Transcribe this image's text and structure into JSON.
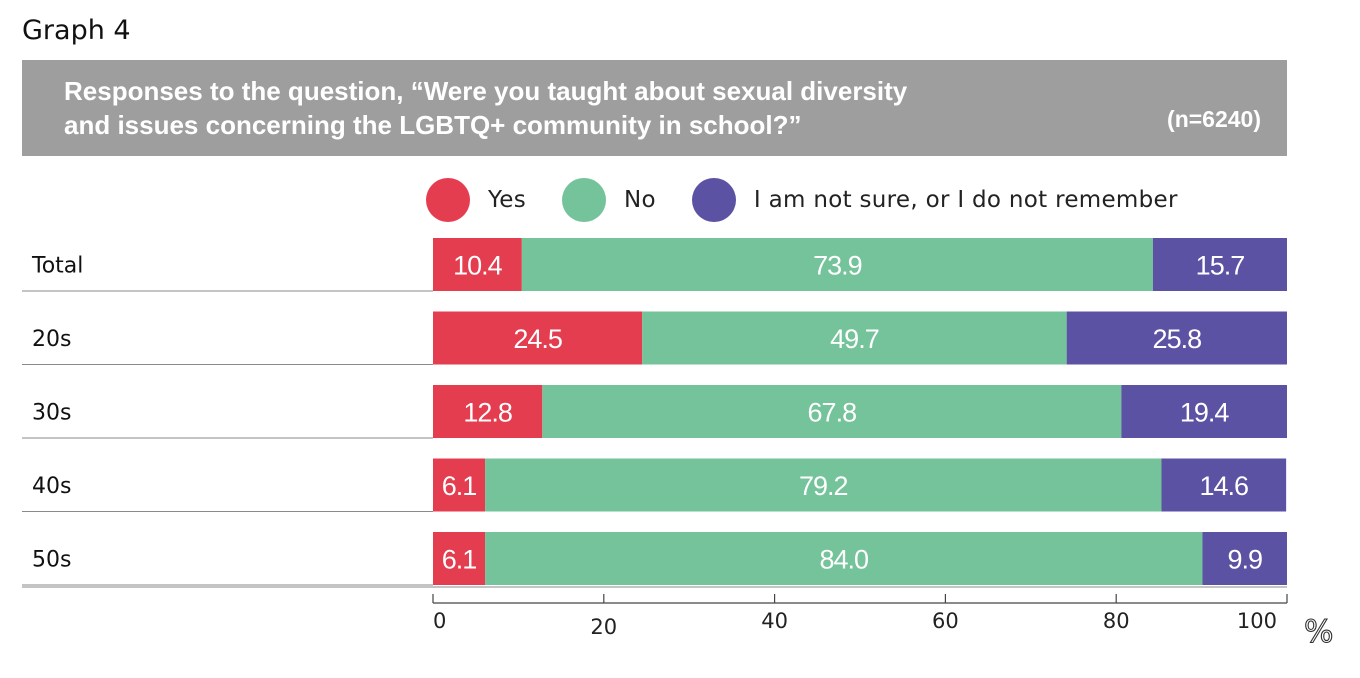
{
  "header": {
    "graph_label": "Graph 4",
    "title_line1": "Responses to the question, “Were you taught about sexual diversity",
    "title_line2": "and issues concerning the LGBTQ+ community in school?”",
    "sample_size": "(n=6240)"
  },
  "colors": {
    "banner": "#9e9e9e",
    "yes": "#e43d4f",
    "no": "#74c39a",
    "not_sure": "#5b52a3"
  },
  "chart_data": {
    "type": "bar",
    "orientation": "horizontal",
    "stacked": true,
    "categories": [
      "Total",
      "20s",
      "30s",
      "40s",
      "50s"
    ],
    "series": [
      {
        "name": "Yes",
        "values": [
          10.4,
          24.5,
          12.8,
          6.1,
          6.1
        ],
        "labels": [
          "10.4",
          "24.5",
          "12.8",
          "6.1",
          "6.1"
        ]
      },
      {
        "name": "No",
        "values": [
          73.9,
          49.7,
          67.8,
          79.2,
          84.0
        ],
        "labels": [
          "73.9",
          "49.7",
          "67.8",
          "79.2",
          "84.0"
        ]
      },
      {
        "name": "I am not sure, or I do not remember",
        "values": [
          15.7,
          25.8,
          19.4,
          14.6,
          9.9
        ],
        "labels": [
          "15.7",
          "25.8",
          "19.4",
          "14.6",
          "9.9"
        ]
      }
    ],
    "xlim": [
      0,
      100
    ],
    "xticks": [
      "0",
      "20",
      "40",
      "60",
      "80",
      "100"
    ],
    "xunit": "%",
    "legend_position": "top",
    "grid": false
  }
}
